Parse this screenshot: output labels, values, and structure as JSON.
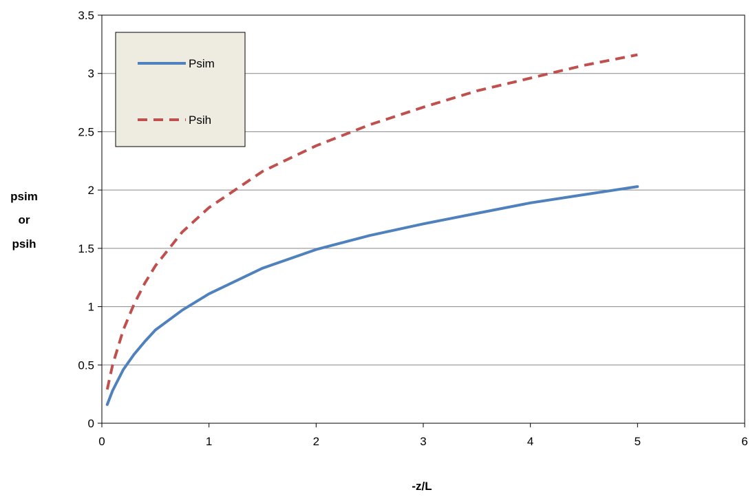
{
  "chart_data": {
    "type": "line",
    "title": "",
    "xlabel": "-z/L",
    "ylabel_lines": [
      "psim",
      "or",
      "psih"
    ],
    "xlim": [
      0,
      6
    ],
    "ylim": [
      0,
      3.5
    ],
    "x_ticks": [
      "0",
      "1",
      "2",
      "3",
      "4",
      "5",
      "6"
    ],
    "y_ticks": [
      "0",
      "0.5",
      "1",
      "1.5",
      "2",
      "2.5",
      "3",
      "3.5"
    ],
    "grid": "horizontal",
    "legend_position": "top-left",
    "series": [
      {
        "name": "Psim",
        "style": "solid",
        "color": "#4f81bd",
        "x": [
          0.05,
          0.1,
          0.2,
          0.3,
          0.4,
          0.5,
          0.75,
          1.0,
          1.5,
          2.0,
          2.5,
          3.0,
          3.5,
          4.0,
          4.5,
          5.0
        ],
        "y": [
          0.16,
          0.28,
          0.46,
          0.59,
          0.7,
          0.8,
          0.97,
          1.11,
          1.33,
          1.49,
          1.61,
          1.71,
          1.8,
          1.89,
          1.96,
          2.03
        ]
      },
      {
        "name": "Psih",
        "style": "dashed",
        "color": "#c0504d",
        "x": [
          0.05,
          0.1,
          0.2,
          0.3,
          0.4,
          0.5,
          0.75,
          1.0,
          1.5,
          2.0,
          2.5,
          3.0,
          3.5,
          4.0,
          4.5,
          5.0
        ],
        "y": [
          0.29,
          0.5,
          0.8,
          1.02,
          1.2,
          1.35,
          1.64,
          1.85,
          2.16,
          2.38,
          2.56,
          2.71,
          2.85,
          2.96,
          3.07,
          3.16
        ]
      }
    ]
  }
}
